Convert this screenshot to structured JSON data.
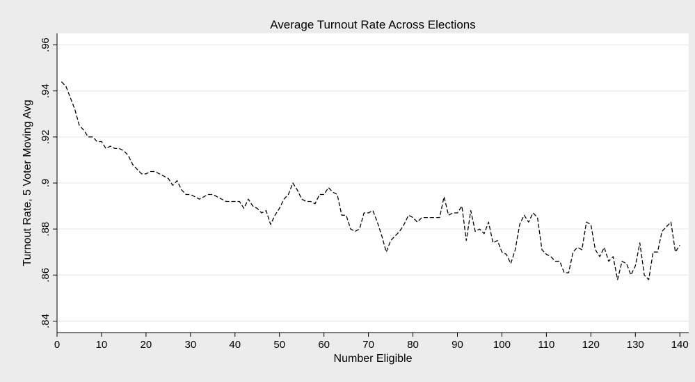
{
  "chart_data": {
    "type": "line",
    "title": "Average Turnout Rate Across Elections",
    "xlabel": "Number Eligible",
    "ylabel": "Turnout Rate, 5 Voter Moving Avg",
    "xlim": [
      0,
      142
    ],
    "ylim": [
      0.835,
      0.965
    ],
    "x_ticks": [
      0,
      10,
      20,
      30,
      40,
      50,
      60,
      70,
      80,
      90,
      100,
      110,
      120,
      130,
      140
    ],
    "x_tick_labels": [
      "0",
      "10",
      "20",
      "30",
      "40",
      "50",
      "60",
      "70",
      "80",
      "90",
      "100",
      "110",
      "120",
      "130",
      "140"
    ],
    "y_ticks": [
      0.84,
      0.86,
      0.88,
      0.9,
      0.92,
      0.94,
      0.96
    ],
    "y_tick_labels": [
      ".84",
      ".86",
      ".88",
      ".9",
      ".92",
      ".94",
      ".96"
    ],
    "grid": true,
    "line_style": "dashed",
    "line_color": "#000000",
    "background_color": "#ececec",
    "plot_background_color": "#ffffff",
    "grid_color": "#e6e6e6",
    "series": [
      {
        "x": [
          1,
          2,
          3,
          4,
          5,
          6,
          7,
          8,
          9,
          10,
          11,
          12,
          13,
          14,
          15,
          16,
          17,
          18,
          19,
          20,
          21,
          22,
          23,
          24,
          25,
          26,
          27,
          28,
          29,
          30,
          31,
          32,
          33,
          34,
          35,
          36,
          37,
          38,
          39,
          40,
          41,
          42,
          43,
          44,
          45,
          46,
          47,
          48,
          49,
          50,
          51,
          52,
          53,
          54,
          55,
          56,
          57,
          58,
          59,
          60,
          61,
          62,
          63,
          64,
          65,
          66,
          67,
          68,
          69,
          70,
          71,
          72,
          73,
          74,
          75,
          76,
          77,
          78,
          79,
          80,
          81,
          82,
          83,
          84,
          85,
          86,
          87,
          88,
          89,
          90,
          91,
          92,
          93,
          94,
          95,
          96,
          97,
          98,
          99,
          100,
          101,
          102,
          103,
          104,
          105,
          106,
          107,
          108,
          109,
          110,
          111,
          112,
          113,
          114,
          115,
          116,
          117,
          118,
          119,
          120,
          121,
          122,
          123,
          124,
          125,
          126,
          127,
          128,
          129,
          130,
          131,
          132,
          133,
          134,
          135,
          136,
          137,
          138,
          139,
          140
        ],
        "y": [
          0.944,
          0.942,
          0.937,
          0.932,
          0.925,
          0.923,
          0.92,
          0.92,
          0.918,
          0.918,
          0.915,
          0.916,
          0.915,
          0.915,
          0.914,
          0.912,
          0.908,
          0.906,
          0.904,
          0.904,
          0.905,
          0.905,
          0.904,
          0.903,
          0.902,
          0.899,
          0.901,
          0.897,
          0.895,
          0.895,
          0.894,
          0.893,
          0.894,
          0.895,
          0.895,
          0.894,
          0.893,
          0.892,
          0.892,
          0.892,
          0.892,
          0.889,
          0.893,
          0.89,
          0.889,
          0.887,
          0.888,
          0.882,
          0.886,
          0.889,
          0.893,
          0.895,
          0.9,
          0.897,
          0.893,
          0.892,
          0.892,
          0.891,
          0.895,
          0.895,
          0.898,
          0.896,
          0.895,
          0.886,
          0.886,
          0.88,
          0.879,
          0.88,
          0.887,
          0.887,
          0.888,
          0.883,
          0.877,
          0.87,
          0.875,
          0.877,
          0.879,
          0.882,
          0.886,
          0.885,
          0.883,
          0.885,
          0.885,
          0.885,
          0.885,
          0.885,
          0.894,
          0.886,
          0.887,
          0.887,
          0.89,
          0.875,
          0.888,
          0.879,
          0.88,
          0.878,
          0.883,
          0.874,
          0.875,
          0.87,
          0.869,
          0.865,
          0.871,
          0.882,
          0.886,
          0.883,
          0.887,
          0.885,
          0.871,
          0.869,
          0.868,
          0.866,
          0.866,
          0.861,
          0.861,
          0.87,
          0.872,
          0.871,
          0.883,
          0.882,
          0.871,
          0.868,
          0.872,
          0.866,
          0.868,
          0.858,
          0.866,
          0.865,
          0.86,
          0.864,
          0.874,
          0.86,
          0.858,
          0.87,
          0.87,
          0.879,
          0.881,
          0.883,
          0.87,
          0.873
        ]
      }
    ]
  }
}
